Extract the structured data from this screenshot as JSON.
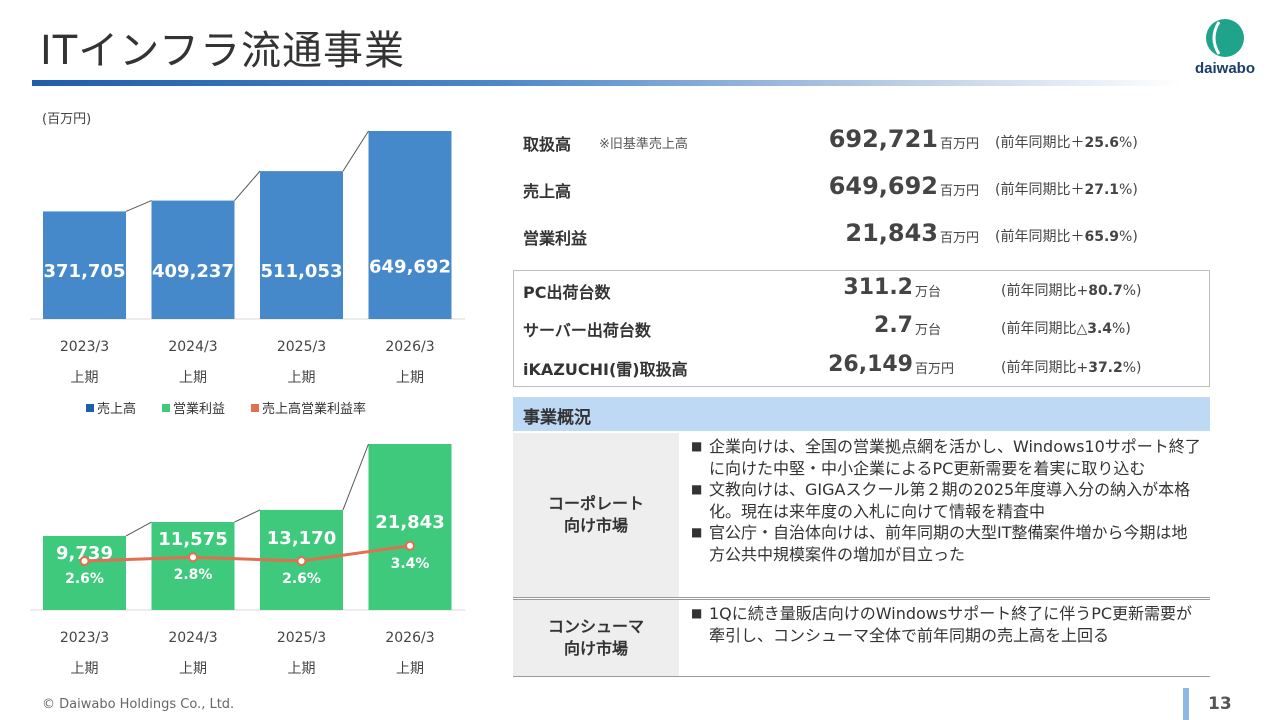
{
  "header": {
    "title": "ITインフラ流通事業",
    "logo_text": "daiwabo"
  },
  "chart_unit": "(百万円)",
  "chart_data": [
    {
      "type": "bar",
      "title": "",
      "categories": [
        [
          "2023/3",
          "上期"
        ],
        [
          "2024/3",
          "上期"
        ],
        [
          "2025/3",
          "上期"
        ],
        [
          "2026/3",
          "上期"
        ]
      ],
      "series": [
        {
          "name": "売上高",
          "values": [
            371705,
            409237,
            511053,
            649692
          ],
          "labels": [
            "371,705",
            "409,237",
            "511,053",
            "649,692"
          ],
          "color": "#4689cb"
        }
      ],
      "ylim": [
        0,
        649692
      ]
    },
    {
      "type": "bar",
      "title": "",
      "categories": [
        [
          "2023/3",
          "上期"
        ],
        [
          "2024/3",
          "上期"
        ],
        [
          "2025/3",
          "上期"
        ],
        [
          "2026/3",
          "上期"
        ]
      ],
      "series": [
        {
          "name": "営業利益",
          "values": [
            9739,
            11575,
            13170,
            21843
          ],
          "labels": [
            "9,739",
            "11,575",
            "13,170",
            "21,843"
          ],
          "color": "#3ec97c"
        },
        {
          "name": "売上高営業利益率",
          "type": "line",
          "values": [
            2.6,
            2.8,
            2.6,
            3.4
          ],
          "labels": [
            "2.6%",
            "2.8%",
            "2.6%",
            "3.4%"
          ],
          "color": "#e07050"
        }
      ]
    }
  ],
  "legend": [
    {
      "label": "売上高",
      "color": "#1f5ea8"
    },
    {
      "label": "営業利益",
      "color": "#3ec97c"
    },
    {
      "label": "売上高営業利益率",
      "color": "#e07050"
    }
  ],
  "kpis": [
    {
      "label": "取扱高",
      "note": "※旧基準売上高",
      "value": "692,721",
      "unit": "百万円",
      "yoy_prefix": "(前年同期比＋",
      "yoy_value": "25.6",
      "yoy_suffix": "%)"
    },
    {
      "label": "売上高",
      "note": "",
      "value": "649,692",
      "unit": "百万円",
      "yoy_prefix": "(前年同期比＋",
      "yoy_value": "27.1",
      "yoy_suffix": "%)"
    },
    {
      "label": "営業利益",
      "note": "",
      "value": "21,843",
      "unit": "百万円",
      "yoy_prefix": "(前年同期比＋",
      "yoy_value": "65.9",
      "yoy_suffix": "%)"
    }
  ],
  "shipments": [
    {
      "label": "PC出荷台数",
      "value": "311.2",
      "unit": "万台",
      "yoy_prefix": "(前年同期比+",
      "yoy_value": "80.7",
      "yoy_suffix": "%)"
    },
    {
      "label": "サーバー出荷台数",
      "value": "2.7",
      "unit": "万台",
      "yoy_prefix": "(前年同期比△",
      "yoy_value": "3.4",
      "yoy_suffix": "%)"
    },
    {
      "label": "iKAZUCHI(雷)取扱高",
      "value": "26,149",
      "unit": "百万円",
      "yoy_prefix": "(前年同期比+",
      "yoy_value": "37.2",
      "yoy_suffix": "%)"
    }
  ],
  "business": {
    "heading": "事業概況",
    "rows": [
      {
        "category_line1": "コーポレート",
        "category_line2": "向け市場",
        "items": [
          "企業向けは、全国の営業拠点網を活かし、Windows10サポート終了に向けた中堅・中小企業によるPC更新需要を着実に取り込む",
          "文教向けは、GIGAスクール第２期の2025年度導入分の納入が本格化。現在は来年度の入札に向けて情報を精査中",
          "官公庁・自治体向けは、前年同期の大型IT整備案件増から今期は地方公共中規模案件の増加が目立った"
        ]
      },
      {
        "category_line1": "コンシューマ",
        "category_line2": "向け市場",
        "items": [
          "1Qに続き量販店向けのWindowsサポート終了に伴うPC更新需要が牽引し、コンシューマ全体で前年同期の売上高を上回る"
        ]
      }
    ]
  },
  "footer": {
    "copyright": "© Daiwabo Holdings Co., Ltd.",
    "page": "13"
  }
}
